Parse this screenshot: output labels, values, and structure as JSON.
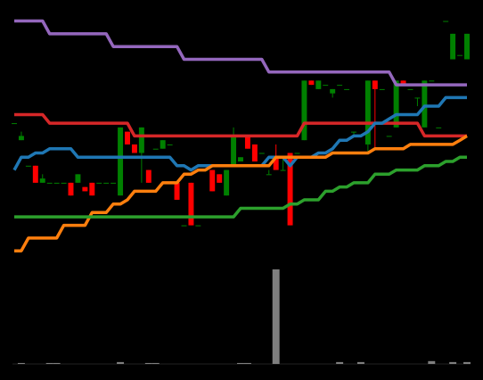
{
  "chart_data": [
    {
      "type": "candlestick",
      "panel": "price",
      "x": [
        0,
        1,
        2,
        3,
        4,
        5,
        6,
        7,
        8,
        9,
        10,
        11,
        12,
        13,
        14,
        15,
        16,
        17,
        18,
        19,
        20,
        21,
        22,
        23,
        24,
        25,
        26,
        27,
        28,
        29,
        30,
        31,
        32,
        33,
        34,
        35,
        36,
        37,
        38,
        39,
        40,
        41,
        42,
        43,
        44,
        45,
        46,
        47,
        48,
        49,
        50,
        51,
        52,
        53,
        54,
        55,
        56,
        57,
        58,
        59,
        60,
        61,
        62,
        63,
        64
      ],
      "candles": [
        {
          "x": 0,
          "open": 1.1,
          "close": 1.1,
          "high": 1.1,
          "low": 1.1
        },
        {
          "x": 1,
          "open": 0.7,
          "close": 0.8,
          "high": 0.9,
          "low": 0.7
        },
        {
          "x": 2,
          "open": 0.1,
          "close": 0.1,
          "high": 0.1,
          "low": 0.1
        },
        {
          "x": 3,
          "open": 0.1,
          "close": -0.3,
          "high": 0.1,
          "low": -0.3
        },
        {
          "x": 4,
          "open": -0.3,
          "close": -0.2,
          "high": -0.1,
          "low": -0.3
        },
        {
          "x": 5,
          "open": -0.3,
          "close": -0.3,
          "high": -0.3,
          "low": -0.3
        },
        {
          "x": 6,
          "open": -0.3,
          "close": -0.3,
          "high": -0.3,
          "low": -0.3
        },
        {
          "x": 7,
          "open": -0.3,
          "close": -0.3,
          "high": -0.3,
          "low": -0.3
        },
        {
          "x": 8,
          "open": -0.3,
          "close": -0.6,
          "high": -0.3,
          "low": -0.6
        },
        {
          "x": 9,
          "open": -0.3,
          "close": -0.1,
          "high": -0.1,
          "low": -0.3
        },
        {
          "x": 10,
          "open": -0.4,
          "close": -0.5,
          "high": -0.4,
          "low": -0.5
        },
        {
          "x": 11,
          "open": -0.3,
          "close": -0.6,
          "high": -0.3,
          "low": -0.6
        },
        {
          "x": 12,
          "open": -0.3,
          "close": -0.3,
          "high": -0.3,
          "low": -0.3
        },
        {
          "x": 13,
          "open": -0.3,
          "close": -0.3,
          "high": -0.3,
          "low": -0.3
        },
        {
          "x": 14,
          "open": -0.3,
          "close": -0.3,
          "high": -0.3,
          "low": -0.3
        },
        {
          "x": 15,
          "open": -0.6,
          "close": 1.0,
          "high": 1.0,
          "low": -0.6
        },
        {
          "x": 16,
          "open": 0.9,
          "close": 0.6,
          "high": 0.9,
          "low": 0.6
        },
        {
          "x": 17,
          "open": 0.6,
          "close": 0.4,
          "high": 0.6,
          "low": 0.4
        },
        {
          "x": 18,
          "open": 0.4,
          "close": 1.0,
          "high": 1.0,
          "low": -0.3
        },
        {
          "x": 19,
          "open": 0.0,
          "close": -0.3,
          "high": 0.0,
          "low": -0.3
        },
        {
          "x": 20,
          "open": 0.5,
          "close": 0.5,
          "high": 0.5,
          "low": 0.5
        },
        {
          "x": 21,
          "open": 0.5,
          "close": 0.7,
          "high": 0.7,
          "low": 0.5
        },
        {
          "x": 22,
          "open": 0.6,
          "close": 0.6,
          "high": 0.6,
          "low": 0.6
        },
        {
          "x": 23,
          "open": -0.3,
          "close": -0.7,
          "high": -0.3,
          "low": -0.7
        },
        {
          "x": 24,
          "open": -1.3,
          "close": -1.3,
          "high": -1.3,
          "low": -1.3
        },
        {
          "x": 25,
          "open": -0.3,
          "close": -1.3,
          "high": -0.3,
          "low": -1.3
        },
        {
          "x": 26,
          "open": -1.3,
          "close": -1.3,
          "high": -1.3,
          "low": -1.3
        },
        {
          "x": 27,
          "open": 0.0,
          "close": 0.0,
          "high": 0.0,
          "low": 0.0
        },
        {
          "x": 28,
          "open": 0.0,
          "close": -0.5,
          "high": 0.0,
          "low": -0.5
        },
        {
          "x": 29,
          "open": -0.1,
          "close": -0.3,
          "high": -0.1,
          "low": -0.3
        },
        {
          "x": 30,
          "open": -0.6,
          "close": 0.0,
          "high": 0.0,
          "low": -0.6
        },
        {
          "x": 31,
          "open": 0.1,
          "close": 0.8,
          "high": 1.0,
          "low": 0.1
        },
        {
          "x": 32,
          "open": 0.2,
          "close": 0.3,
          "high": 0.3,
          "low": 0.2
        },
        {
          "x": 33,
          "open": 0.8,
          "close": 0.5,
          "high": 0.8,
          "low": 0.5
        },
        {
          "x": 34,
          "open": 0.6,
          "close": 0.2,
          "high": 0.6,
          "low": 0.2
        },
        {
          "x": 35,
          "open": 0.4,
          "close": 0.4,
          "high": 0.4,
          "low": 0.4
        },
        {
          "x": 36,
          "open": -0.1,
          "close": -0.1,
          "high": 0.0,
          "low": -0.1
        },
        {
          "x": 37,
          "open": 0.3,
          "close": 0.0,
          "high": 0.6,
          "low": 0.0
        },
        {
          "x": 38,
          "open": 0.0,
          "close": 0.0,
          "high": 0.3,
          "low": 0.0
        },
        {
          "x": 39,
          "open": 0.4,
          "close": -1.3,
          "high": 0.4,
          "low": -1.3
        },
        {
          "x": 40,
          "open": 0.4,
          "close": 0.4,
          "high": 0.4,
          "low": 0.4
        },
        {
          "x": 41,
          "open": 0.7,
          "close": 2.1,
          "high": 2.1,
          "low": 0.7
        },
        {
          "x": 42,
          "open": 2.1,
          "close": 2.0,
          "high": 2.1,
          "low": 2.0
        },
        {
          "x": 43,
          "open": 1.9,
          "close": 2.1,
          "high": 2.1,
          "low": 1.9
        },
        {
          "x": 44,
          "open": 2.0,
          "close": 2.0,
          "high": 2.0,
          "low": 2.0
        },
        {
          "x": 45,
          "open": 1.8,
          "close": 1.9,
          "high": 1.9,
          "low": 1.7
        },
        {
          "x": 46,
          "open": 2.0,
          "close": 2.0,
          "high": 2.0,
          "low": 2.0
        },
        {
          "x": 47,
          "open": 1.9,
          "close": 1.9,
          "high": 1.9,
          "low": 1.9
        },
        {
          "x": 48,
          "open": 0.9,
          "close": 0.9,
          "high": 0.9,
          "low": 0.8
        },
        {
          "x": 49,
          "open": 0.4,
          "close": 0.4,
          "high": 0.4,
          "low": 0.4
        },
        {
          "x": 50,
          "open": 0.6,
          "close": 2.1,
          "high": 2.1,
          "low": 0.4
        },
        {
          "x": 51,
          "open": 2.1,
          "close": 1.9,
          "high": 2.1,
          "low": 0.5
        },
        {
          "x": 52,
          "open": 1.9,
          "close": 1.9,
          "high": 1.9,
          "low": 1.9
        },
        {
          "x": 53,
          "open": 0.8,
          "close": 0.8,
          "high": 0.8,
          "low": 0.8
        },
        {
          "x": 54,
          "open": 1.0,
          "close": 2.1,
          "high": 2.1,
          "low": 1.0
        },
        {
          "x": 55,
          "open": 2.1,
          "close": 2.0,
          "high": 2.1,
          "low": 2.0
        },
        {
          "x": 56,
          "open": 1.9,
          "close": 1.9,
          "high": 1.9,
          "low": 1.9
        },
        {
          "x": 57,
          "open": 1.7,
          "close": 1.7,
          "high": 1.7,
          "low": 1.5
        },
        {
          "x": 58,
          "open": 1.0,
          "close": 2.1,
          "high": 2.1,
          "low": 1.0
        },
        {
          "x": 59,
          "open": 2.1,
          "close": 2.1,
          "high": 2.1,
          "low": 2.1
        },
        {
          "x": 60,
          "open": 1.0,
          "close": 1.0,
          "high": 1.0,
          "low": 1.0
        },
        {
          "x": 61,
          "open": 3.5,
          "close": 3.5,
          "high": 3.5,
          "low": 3.5
        },
        {
          "x": 62,
          "open": 2.6,
          "close": 3.2,
          "high": 3.2,
          "low": 2.6
        },
        {
          "x": 63,
          "open": 2.7,
          "close": 2.7,
          "high": 2.7,
          "low": 2.7
        },
        {
          "x": 64,
          "open": 2.6,
          "close": 3.2,
          "high": 3.2,
          "low": 2.6
        }
      ],
      "series": [
        {
          "color": "#9467bd",
          "values": [
            3.5,
            3.5,
            3.5,
            3.5,
            3.5,
            3.2,
            3.2,
            3.2,
            3.2,
            3.2,
            3.2,
            3.2,
            3.2,
            3.2,
            2.9,
            2.9,
            2.9,
            2.9,
            2.9,
            2.9,
            2.9,
            2.9,
            2.9,
            2.9,
            2.6,
            2.6,
            2.6,
            2.6,
            2.6,
            2.6,
            2.6,
            2.6,
            2.6,
            2.6,
            2.6,
            2.6,
            2.3,
            2.3,
            2.3,
            2.3,
            2.3,
            2.3,
            2.3,
            2.3,
            2.3,
            2.3,
            2.3,
            2.3,
            2.3,
            2.3,
            2.3,
            2.3,
            2.3,
            2.3,
            2.0,
            2.0,
            2.0,
            2.0,
            2.0,
            2.0,
            2.0,
            2.0,
            2.0,
            2.0,
            2.0
          ]
        },
        {
          "color": "#d62728",
          "values": [
            1.3,
            1.3,
            1.3,
            1.3,
            1.3,
            1.1,
            1.1,
            1.1,
            1.1,
            1.1,
            1.1,
            1.1,
            1.1,
            1.1,
            1.1,
            1.1,
            1.1,
            0.8,
            0.8,
            0.8,
            0.8,
            0.8,
            0.8,
            0.8,
            0.8,
            0.8,
            0.8,
            0.8,
            0.8,
            0.8,
            0.8,
            0.8,
            0.8,
            0.8,
            0.8,
            0.8,
            0.8,
            0.8,
            0.8,
            0.8,
            0.8,
            1.1,
            1.1,
            1.1,
            1.1,
            1.1,
            1.1,
            1.1,
            1.1,
            1.1,
            1.1,
            1.1,
            1.1,
            1.1,
            1.1,
            1.1,
            1.1,
            1.1,
            0.8,
            0.8,
            0.8,
            0.8,
            0.8,
            0.8,
            0.8
          ]
        },
        {
          "color": "#1f77b4",
          "values": [
            0.0,
            0.3,
            0.3,
            0.4,
            0.4,
            0.5,
            0.5,
            0.5,
            0.5,
            0.3,
            0.3,
            0.3,
            0.3,
            0.3,
            0.3,
            0.3,
            0.3,
            0.3,
            0.3,
            0.3,
            0.3,
            0.3,
            0.3,
            0.1,
            0.1,
            0.0,
            0.1,
            0.1,
            0.1,
            0.1,
            0.1,
            0.1,
            0.1,
            0.1,
            0.1,
            0.1,
            0.3,
            0.3,
            0.3,
            0.1,
            0.3,
            0.3,
            0.3,
            0.4,
            0.4,
            0.5,
            0.7,
            0.7,
            0.8,
            0.8,
            0.9,
            1.1,
            1.1,
            1.2,
            1.3,
            1.3,
            1.3,
            1.3,
            1.5,
            1.5,
            1.5,
            1.7,
            1.7,
            1.7,
            1.7
          ]
        },
        {
          "color": "#ff7f0e",
          "values": [
            -1.9,
            -1.9,
            -1.6,
            -1.6,
            -1.6,
            -1.6,
            -1.6,
            -1.3,
            -1.3,
            -1.3,
            -1.3,
            -1.0,
            -1.0,
            -1.0,
            -0.8,
            -0.8,
            -0.7,
            -0.5,
            -0.5,
            -0.5,
            -0.5,
            -0.3,
            -0.3,
            -0.3,
            -0.1,
            -0.1,
            0.0,
            0.0,
            0.1,
            0.1,
            0.1,
            0.1,
            0.1,
            0.1,
            0.1,
            0.1,
            0.1,
            0.3,
            0.3,
            0.3,
            0.3,
            0.3,
            0.3,
            0.3,
            0.3,
            0.4,
            0.4,
            0.4,
            0.4,
            0.4,
            0.4,
            0.5,
            0.5,
            0.5,
            0.5,
            0.5,
            0.6,
            0.6,
            0.6,
            0.6,
            0.6,
            0.6,
            0.6,
            0.7,
            0.8
          ]
        },
        {
          "color": "#2ca02c",
          "values": [
            -1.1,
            -1.1,
            -1.1,
            -1.1,
            -1.1,
            -1.1,
            -1.1,
            -1.1,
            -1.1,
            -1.1,
            -1.1,
            -1.1,
            -1.1,
            -1.1,
            -1.1,
            -1.1,
            -1.1,
            -1.1,
            -1.1,
            -1.1,
            -1.1,
            -1.1,
            -1.1,
            -1.1,
            -1.1,
            -1.1,
            -1.1,
            -1.1,
            -1.1,
            -1.1,
            -1.1,
            -1.1,
            -0.9,
            -0.9,
            -0.9,
            -0.9,
            -0.9,
            -0.9,
            -0.9,
            -0.8,
            -0.8,
            -0.7,
            -0.7,
            -0.7,
            -0.5,
            -0.5,
            -0.4,
            -0.4,
            -0.3,
            -0.3,
            -0.3,
            -0.1,
            -0.1,
            -0.1,
            0.0,
            0.0,
            0.0,
            0.0,
            0.1,
            0.1,
            0.1,
            0.2,
            0.2,
            0.3,
            0.3
          ]
        }
      ],
      "ylim": [
        -2.0,
        3.7
      ],
      "grid": false,
      "legend": "none"
    },
    {
      "type": "bar",
      "panel": "volume",
      "x": [
        0,
        1,
        2,
        3,
        4,
        5,
        6,
        7,
        8,
        9,
        10,
        11,
        12,
        13,
        14,
        15,
        16,
        17,
        18,
        19,
        20,
        21,
        22,
        23,
        24,
        25,
        26,
        27,
        28,
        29,
        30,
        31,
        32,
        33,
        34,
        35,
        36,
        37,
        38,
        39,
        40,
        41,
        42,
        43,
        44,
        45,
        46,
        47,
        48,
        49,
        50,
        51,
        52,
        53,
        54,
        55,
        56,
        57,
        58,
        59,
        60,
        61,
        62,
        63,
        64
      ],
      "values": [
        0,
        1,
        0,
        0,
        0,
        1,
        1,
        0,
        0,
        0,
        0,
        0,
        0,
        0,
        0,
        2,
        0,
        0,
        0,
        1,
        1,
        0,
        0,
        0,
        0,
        0,
        0,
        0,
        0,
        0,
        0,
        0,
        1,
        1,
        0,
        0,
        0,
        100,
        0,
        0,
        0,
        0,
        0,
        0,
        0,
        0,
        2,
        0,
        0,
        2,
        0,
        0,
        0,
        0,
        0,
        0,
        0,
        0,
        0,
        3,
        0,
        0,
        2,
        0,
        2
      ],
      "color": "#7f7f7f",
      "ylim": [
        0,
        100
      ]
    }
  ]
}
